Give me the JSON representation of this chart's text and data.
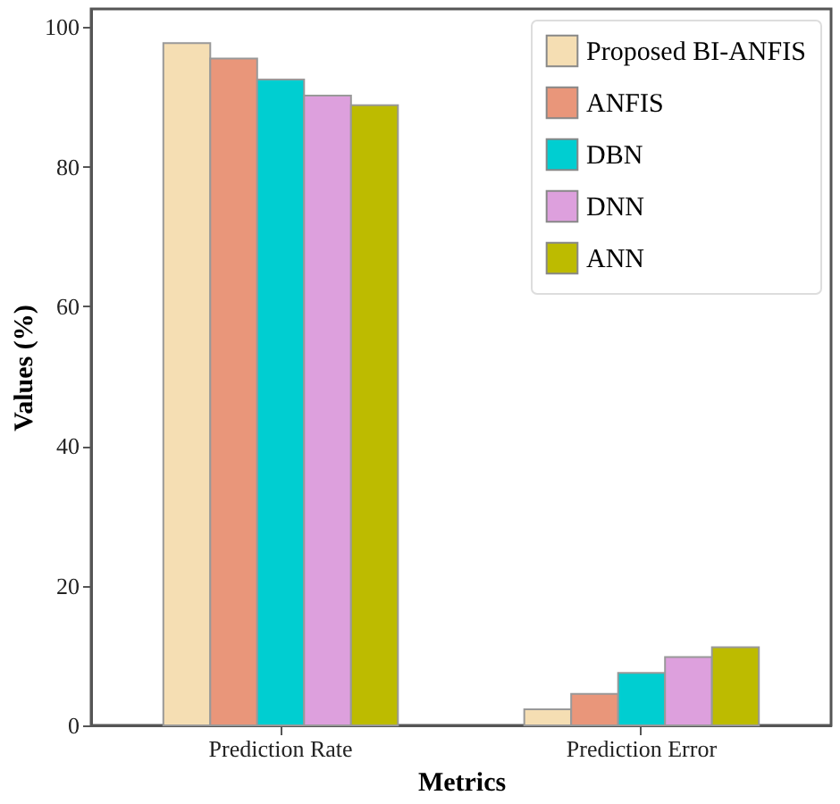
{
  "chart_data": {
    "type": "bar",
    "xlabel": "Metrics",
    "ylabel": "Values (%)",
    "categories": [
      "Prediction Rate",
      "Prediction Error"
    ],
    "series": [
      {
        "name": "Proposed BI-ANFIS",
        "color": "#f5deb3",
        "values": [
          97.7,
          2.3
        ]
      },
      {
        "name": "ANFIS",
        "color": "#e9967a",
        "values": [
          95.5,
          4.5
        ]
      },
      {
        "name": "DBN",
        "color": "#00ced1",
        "values": [
          92.5,
          7.5
        ]
      },
      {
        "name": "DNN",
        "color": "#dda0dd",
        "values": [
          90.2,
          9.8
        ]
      },
      {
        "name": "ANN",
        "color": "#bdbb00",
        "values": [
          88.8,
          11.2
        ]
      }
    ],
    "ylim": [
      0,
      102.6
    ],
    "yticks": [
      0,
      20,
      40,
      60,
      80,
      100
    ],
    "grid": false,
    "legend": "top right"
  }
}
